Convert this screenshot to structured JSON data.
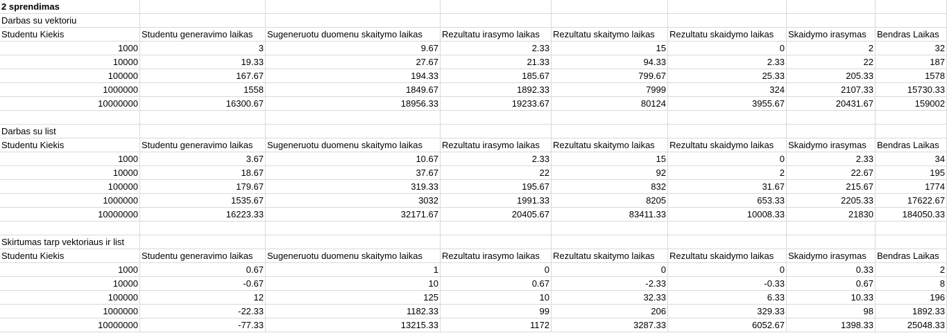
{
  "title": "2 sprendimas",
  "sections": [
    {
      "label": "Darbas su vektoriu",
      "header": [
        "Studentu Kiekis",
        "Studentu generavimo laikas",
        "Sugeneruotu duomenu skaitymo laikas",
        "Rezultatu irasymo laikas",
        "Rezultatu skaitymo laikas",
        "Rezultatu skaidymo laikas",
        "Skaidymo irasymas",
        "Bendras Laikas"
      ],
      "rows": [
        [
          "1000",
          "3",
          "9.67",
          "2.33",
          "15",
          "0",
          "2",
          "32"
        ],
        [
          "10000",
          "19.33",
          "27.67",
          "21.33",
          "94.33",
          "2.33",
          "22",
          "187"
        ],
        [
          "100000",
          "167.67",
          "194.33",
          "185.67",
          "799.67",
          "25.33",
          "205.33",
          "1578"
        ],
        [
          "1000000",
          "1558",
          "1849.67",
          "1892.33",
          "7999",
          "324",
          "2107.33",
          "15730.33"
        ],
        [
          "10000000",
          "16300.67",
          "18956.33",
          "19233.67",
          "80124",
          "3955.67",
          "20431.67",
          "159002"
        ]
      ]
    },
    {
      "label": "Darbas su list",
      "header": [
        "Studentu Kiekis",
        "Studentu generavimo laikas",
        "Sugeneruotu duomenu skaitymo laikas",
        "Rezultatu irasymo laikas",
        "Rezultatu skaitymo laikas",
        "Rezultatu skaidymo laikas",
        "Skaidymo irasymas",
        "Bendras Laikas"
      ],
      "rows": [
        [
          "1000",
          "3.67",
          "10.67",
          "2.33",
          "15",
          "0",
          "2.33",
          "34"
        ],
        [
          "10000",
          "18.67",
          "37.67",
          "22",
          "92",
          "2",
          "22.67",
          "195"
        ],
        [
          "100000",
          "179.67",
          "319.33",
          "195.67",
          "832",
          "31.67",
          "215.67",
          "1774"
        ],
        [
          "1000000",
          "1535.67",
          "3032",
          "1991.33",
          "8205",
          "653.33",
          "2205.33",
          "17622.67"
        ],
        [
          "10000000",
          "16223.33",
          "32171.67",
          "20405.67",
          "83411.33",
          "10008.33",
          "21830",
          "184050.33"
        ]
      ]
    },
    {
      "label": "Skirtumas tarp vektoriaus ir list",
      "header": [
        "Studentu Kiekis",
        "Studentu generavimo laikas",
        "Sugeneruotu duomenu skaitymo laikas",
        "Rezultatu irasymo laikas",
        "Rezultatu skaitymo laikas",
        "Rezultatu skaidymo laikas",
        "Skaidymo irasymas",
        "Bendras Laikas"
      ],
      "rows": [
        [
          "1000",
          "0.67",
          "1",
          "0",
          "0",
          "0",
          "0.33",
          "2"
        ],
        [
          "10000",
          "-0.67",
          "10",
          "0.67",
          "-2.33",
          "-0.33",
          "0.67",
          "8"
        ],
        [
          "100000",
          "12",
          "125",
          "10",
          "32.33",
          "6.33",
          "10.33",
          "196"
        ],
        [
          "1000000",
          "-22.33",
          "1182.33",
          "99",
          "206",
          "329.33",
          "98",
          "1892.33"
        ],
        [
          "10000000",
          "-77.33",
          "13215.33",
          "1172",
          "3287.33",
          "6052.67",
          "1398.33",
          "25048.33"
        ]
      ]
    }
  ]
}
